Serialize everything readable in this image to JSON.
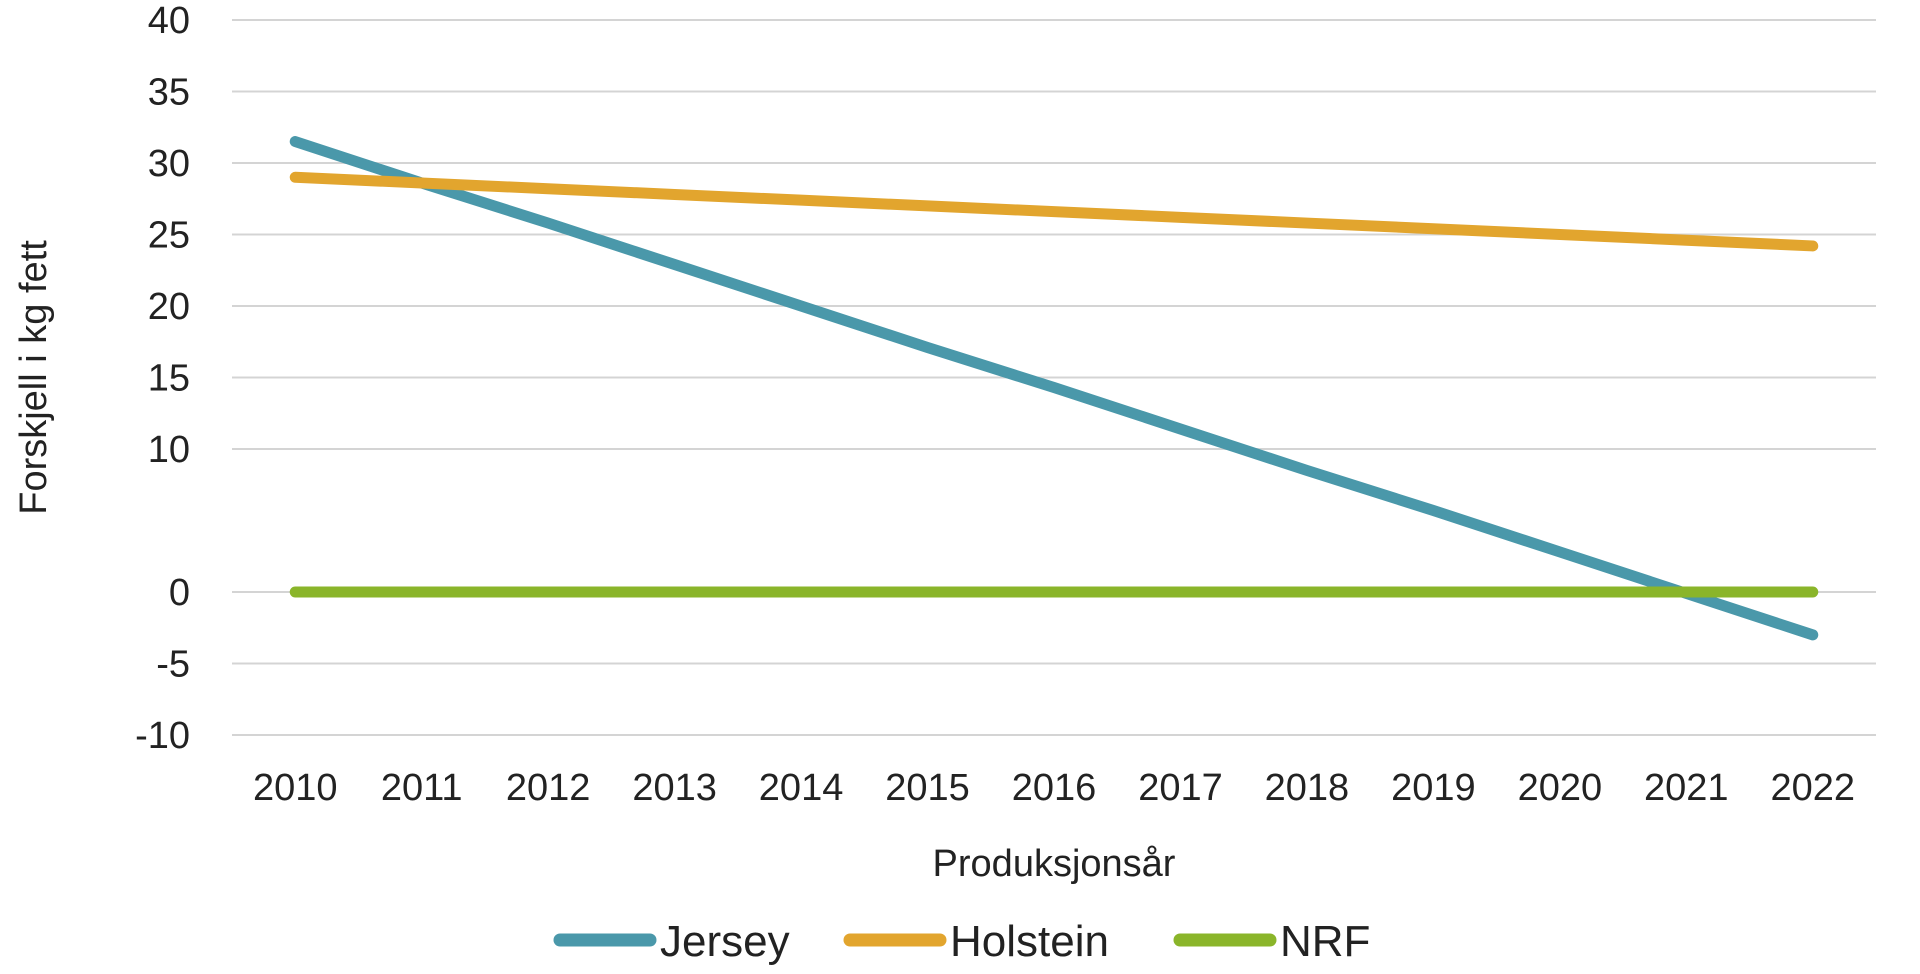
{
  "chart_data": {
    "type": "line",
    "title": "",
    "xlabel": "Produksjonsår",
    "ylabel": "Forskjell i kg fett",
    "x": [
      2010,
      2011,
      2012,
      2013,
      2014,
      2015,
      2016,
      2017,
      2018,
      2019,
      2020,
      2021,
      2022
    ],
    "ylim": [
      -10,
      40
    ],
    "yticks": [
      40,
      35,
      30,
      25,
      20,
      15,
      10,
      0,
      -5,
      -10
    ],
    "grid": true,
    "legend_position": "bottom",
    "series": [
      {
        "name": "Jersey",
        "color": "#4a98aa",
        "values": [
          31.5,
          28.6,
          25.8,
          22.9,
          20.0,
          17.1,
          14.3,
          11.4,
          8.5,
          5.7,
          2.8,
          -0.1,
          -3.0
        ]
      },
      {
        "name": "Holstein",
        "color": "#e2a52e",
        "values": [
          29.0,
          28.6,
          28.2,
          27.8,
          27.4,
          27.0,
          26.6,
          26.2,
          25.8,
          25.4,
          25.0,
          24.6,
          24.2
        ]
      },
      {
        "name": "NRF",
        "color": "#8ab52a",
        "values": [
          0,
          0,
          0,
          0,
          0,
          0,
          0,
          0,
          0,
          0,
          0,
          0,
          0
        ]
      }
    ]
  }
}
